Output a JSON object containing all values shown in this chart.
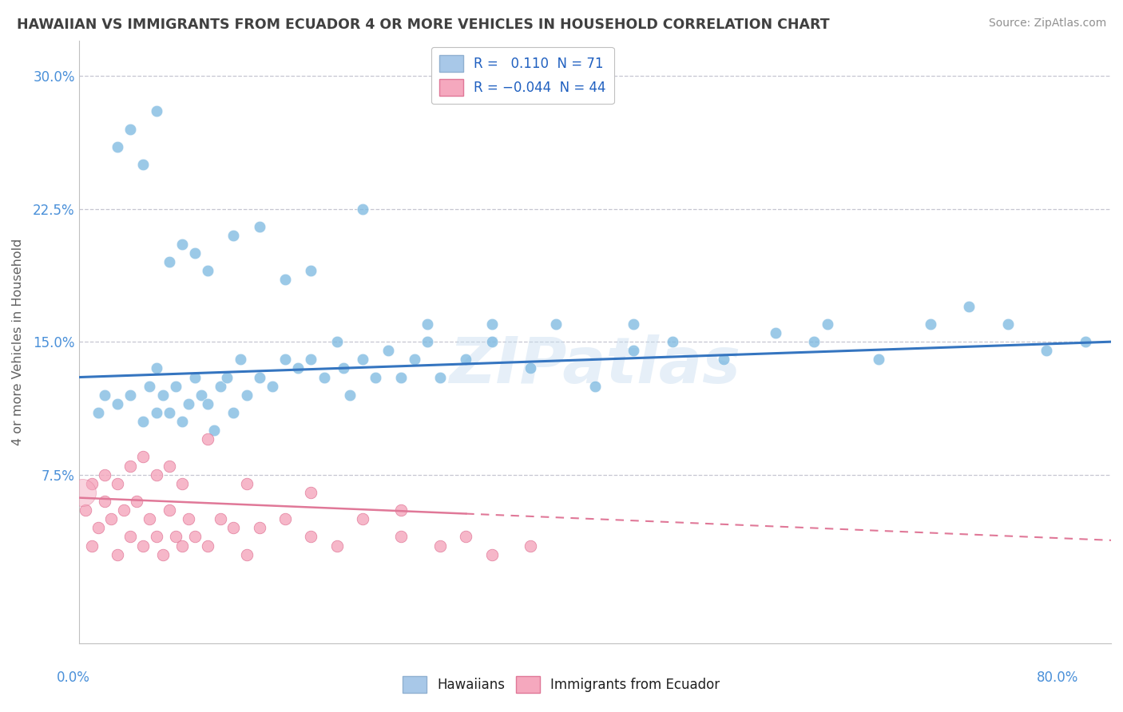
{
  "title": "HAWAIIAN VS IMMIGRANTS FROM ECUADOR 4 OR MORE VEHICLES IN HOUSEHOLD CORRELATION CHART",
  "source": "Source: ZipAtlas.com",
  "ylabel": "4 or more Vehicles in Household",
  "xlim": [
    0.0,
    80.0
  ],
  "ylim": [
    -2.0,
    32.0
  ],
  "watermark": "ZIPatlas",
  "hawaiians": {
    "color": "#7ab8e0",
    "trend_color": "#3575c0",
    "trend_start": 13.0,
    "trend_end": 15.0,
    "x": [
      1.5,
      2,
      3,
      4,
      5,
      5.5,
      6,
      6,
      6.5,
      7,
      7.5,
      8,
      8.5,
      9,
      9.5,
      10,
      10.5,
      11,
      11.5,
      12,
      12.5,
      13,
      14,
      15,
      16,
      17,
      18,
      19,
      20,
      20.5,
      21,
      22,
      23,
      24,
      25,
      26,
      27,
      28,
      30,
      32,
      35,
      37,
      40,
      43,
      46,
      50,
      54,
      58,
      62,
      66,
      69,
      72,
      75,
      78,
      3,
      4,
      5,
      6,
      7,
      8,
      9,
      10,
      12,
      14,
      16,
      18,
      22,
      27,
      32,
      43,
      57
    ],
    "y": [
      11,
      12,
      11.5,
      12,
      10.5,
      12.5,
      11,
      13.5,
      12,
      11,
      12.5,
      10.5,
      11.5,
      13,
      12,
      11.5,
      10,
      12.5,
      13,
      11,
      14,
      12,
      13,
      12.5,
      14,
      13.5,
      14,
      13,
      15,
      13.5,
      12,
      14,
      13,
      14.5,
      13,
      14,
      15,
      13,
      14,
      15,
      13.5,
      16,
      12.5,
      14.5,
      15,
      14,
      15.5,
      16,
      14,
      16,
      17,
      16,
      14.5,
      15,
      26,
      27,
      25,
      28,
      19.5,
      20.5,
      20,
      19,
      21,
      21.5,
      18.5,
      19,
      22.5,
      16,
      16,
      16,
      15
    ]
  },
  "ecuador": {
    "color": "#f5a8be",
    "edge_color": "#e07898",
    "trend_color": "#e07898",
    "trend_start": 6.2,
    "trend_end": 3.8,
    "x": [
      0.5,
      1,
      1.5,
      2,
      2.5,
      3,
      3.5,
      4,
      4.5,
      5,
      5.5,
      6,
      6.5,
      7,
      7.5,
      8,
      8.5,
      9,
      10,
      11,
      12,
      13,
      14,
      16,
      18,
      20,
      22,
      25,
      28,
      30,
      32,
      35,
      1,
      2,
      3,
      4,
      5,
      6,
      7,
      8,
      10,
      13,
      18,
      25
    ],
    "y": [
      5.5,
      3.5,
      4.5,
      6,
      5,
      3,
      5.5,
      4,
      6,
      3.5,
      5,
      4,
      3,
      5.5,
      4,
      3.5,
      5,
      4,
      3.5,
      5,
      4.5,
      3,
      4.5,
      5,
      4,
      3.5,
      5,
      4,
      3.5,
      4,
      3,
      3.5,
      7,
      7.5,
      7,
      8,
      8.5,
      7.5,
      8,
      7,
      9.5,
      7,
      6.5,
      5.5
    ]
  },
  "ecuador_large": {
    "x": [
      0.3
    ],
    "y": [
      6.5
    ],
    "size": 600
  },
  "background_color": "#ffffff",
  "grid_color": "#c0c0cc",
  "title_color": "#404040",
  "source_color": "#909090",
  "axis_label_color": "#4a90d9",
  "yticks": [
    0.0,
    7.5,
    15.0,
    22.5,
    30.0
  ],
  "ytick_labels": [
    "",
    "7.5%",
    "15.0%",
    "22.5%",
    "30.0%"
  ]
}
